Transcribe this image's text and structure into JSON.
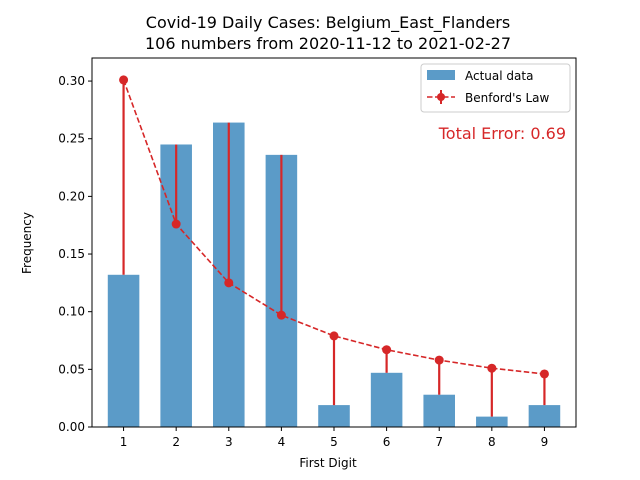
{
  "chart_data": {
    "type": "bar",
    "title": "Covid-19 Daily Cases: Belgium_East_Flanders",
    "subtitle": "106 numbers from 2020-11-12 to 2021-02-27",
    "xlabel": "First Digit",
    "ylabel": "Frequency",
    "categories": [
      "1",
      "2",
      "3",
      "4",
      "5",
      "6",
      "7",
      "8",
      "9"
    ],
    "ylim": [
      0,
      0.32
    ],
    "yticks": [
      "0.00",
      "0.05",
      "0.10",
      "0.15",
      "0.20",
      "0.25",
      "0.30"
    ],
    "series": [
      {
        "name": "Actual data",
        "type": "bar",
        "color": "#5b9bc8",
        "values": [
          0.132,
          0.245,
          0.264,
          0.236,
          0.019,
          0.047,
          0.028,
          0.009,
          0.019
        ]
      },
      {
        "name": "Benford's Law",
        "type": "line",
        "color": "#d62728",
        "values": [
          0.301,
          0.176,
          0.125,
          0.097,
          0.079,
          0.067,
          0.058,
          0.051,
          0.046
        ]
      }
    ],
    "annotation": "Total Error: 0.69",
    "legend_position": "top-right",
    "grid": false
  }
}
